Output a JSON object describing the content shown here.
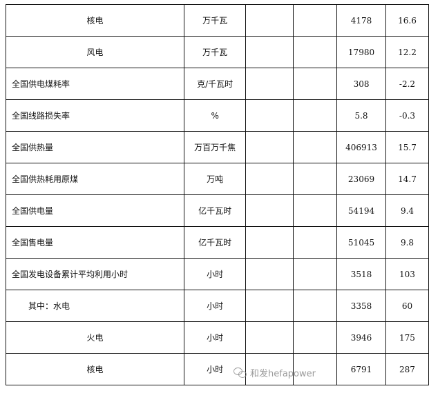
{
  "rows": [
    {
      "name": "核电",
      "unit": "万千瓦",
      "value": "4178",
      "change": "16.6",
      "align": "center"
    },
    {
      "name": "风电",
      "unit": "万千瓦",
      "value": "17980",
      "change": "12.2",
      "align": "center"
    },
    {
      "name": "全国供电煤耗率",
      "unit": "克/千瓦时",
      "value": "308",
      "change": "-2.2",
      "align": "left"
    },
    {
      "name": "全国线路损失率",
      "unit": "%",
      "value": "5.8",
      "change": "-0.3",
      "align": "left"
    },
    {
      "name": "全国供热量",
      "unit": "万百万千焦",
      "value": "406913",
      "change": "15.7",
      "align": "left"
    },
    {
      "name": "全国供热耗用原煤",
      "unit": "万吨",
      "value": "23069",
      "change": "14.7",
      "align": "left"
    },
    {
      "name": "全国供电量",
      "unit": "亿千瓦时",
      "value": "54194",
      "change": "9.4",
      "align": "left"
    },
    {
      "name": "全国售电量",
      "unit": "亿千瓦时",
      "value": "51045",
      "change": "9.8",
      "align": "left"
    },
    {
      "name": "全国发电设备累计平均利用小时",
      "unit": "小时",
      "value": "3518",
      "change": "103",
      "align": "left"
    },
    {
      "name": "其中：水电",
      "unit": "小时",
      "value": "3358",
      "change": "60",
      "align": "indent"
    },
    {
      "name": "火电",
      "unit": "小时",
      "value": "3946",
      "change": "175",
      "align": "center"
    },
    {
      "name": "核电",
      "unit": "小时",
      "value": "6791",
      "change": "287",
      "align": "center"
    }
  ],
  "watermark": {
    "text": "和发hefapower",
    "icon": "wechat-icon"
  }
}
